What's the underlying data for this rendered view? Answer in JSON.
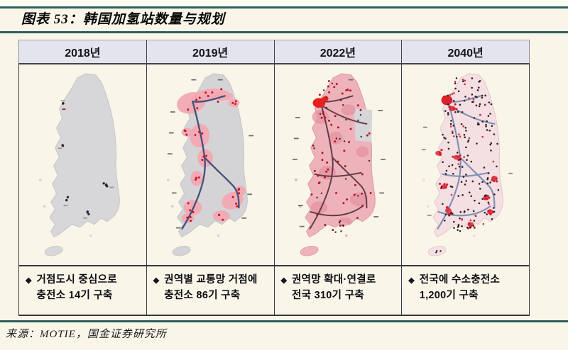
{
  "figure": {
    "title": "图表 53：韩国加氢站数量与规划",
    "source": "来源：MOTIE，国金证券研究所"
  },
  "table": {
    "columns": [
      {
        "year": "2018년",
        "bullet": "◆",
        "note_line1": "거점도시 중심으로",
        "note_line2": "충전소 14기 구축",
        "stations": 14,
        "map": {
          "label": "korea-map-2018",
          "coverage": "hub-cities-sparse-stations"
        }
      },
      {
        "year": "2019년",
        "bullet": "◆",
        "note_line1": "권역별 교통망 거점에",
        "note_line2": "충전소 86기 구축",
        "stations": 86,
        "map": {
          "label": "korea-map-2019",
          "coverage": "regional-transport-hub-corridors"
        }
      },
      {
        "year": "2022년",
        "bullet": "◆",
        "note_line1": "권역망 확대·연결로",
        "note_line2": "전국 310기 구축",
        "stations": 310,
        "map": {
          "label": "korea-map-2022",
          "coverage": "expanded-connected-regional-network"
        }
      },
      {
        "year": "2040년",
        "bullet": "◆",
        "note_line1": "전국에 수소충전소",
        "note_line2": "1,200기 구축",
        "stations": 1200,
        "map": {
          "label": "korea-map-2040",
          "coverage": "nationwide-dense-coverage"
        }
      }
    ]
  },
  "colors": {
    "rule_teal": "#2e5f5c",
    "header_bg": "#e3e4ee",
    "map_gray": "#d7d7d9",
    "region_pink": "#f3a9b2",
    "full_pink": "#eeb3ba",
    "pale_pink": "#f4dfe2",
    "station_red": "#c3141f",
    "seoul_red": "#e8211d",
    "dark_dot": "#2b2126",
    "road_2019": "#46527c",
    "road_2022": "#5f3c49",
    "road_2040": "#8290b4"
  }
}
